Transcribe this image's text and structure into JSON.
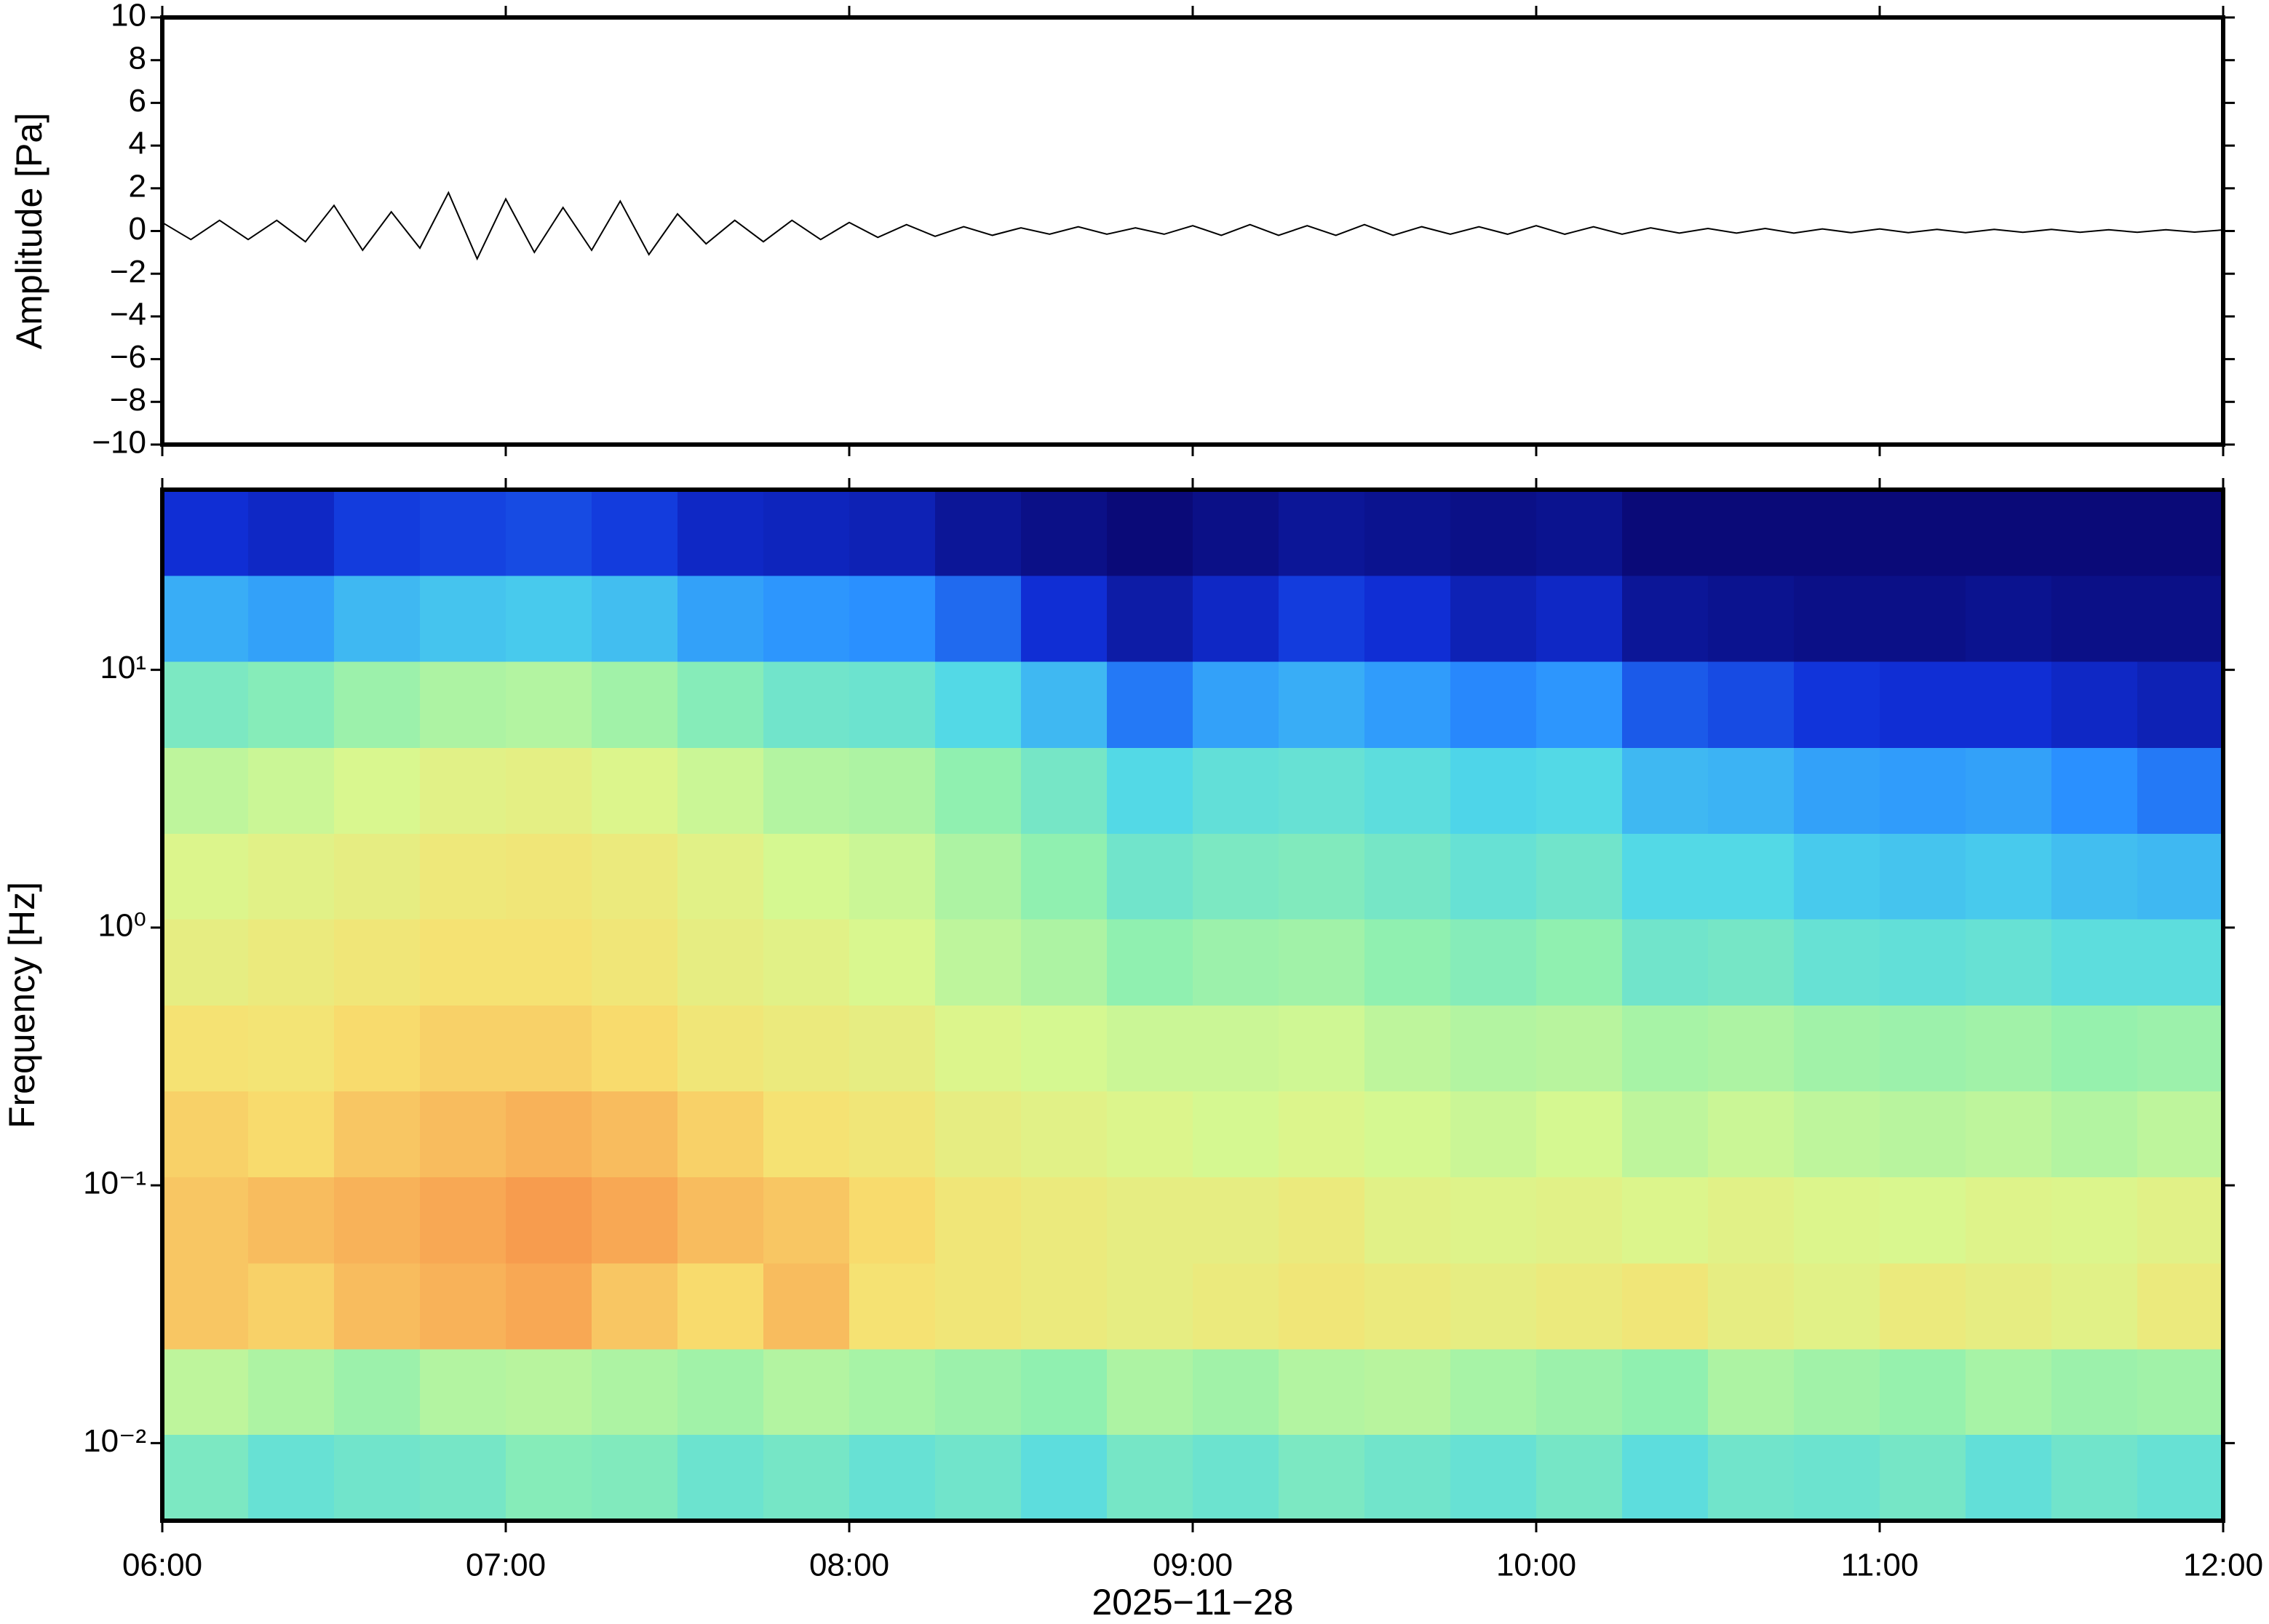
{
  "chart_data": [
    {
      "type": "line",
      "ylabel": "Amplitude [Pa]",
      "ylim": [
        -10,
        10
      ],
      "yticks": [
        {
          "value": -10,
          "label": "−10"
        },
        {
          "value": -8,
          "label": "−8"
        },
        {
          "value": -6,
          "label": "−6"
        },
        {
          "value": -4,
          "label": "−4"
        },
        {
          "value": -2,
          "label": "−2"
        },
        0,
        2,
        4,
        6,
        8,
        10
      ],
      "xlim": [
        "06:00",
        "12:00"
      ],
      "xticks": [
        "06:00",
        "07:00",
        "08:00",
        "09:00",
        "10:00",
        "11:00",
        "12:00"
      ],
      "show_xticklabels": false,
      "x": [
        "06:00",
        "06:05",
        "06:10",
        "06:15",
        "06:20",
        "06:25",
        "06:30",
        "06:35",
        "06:40",
        "06:45",
        "06:50",
        "06:55",
        "07:00",
        "07:05",
        "07:10",
        "07:15",
        "07:20",
        "07:25",
        "07:30",
        "07:35",
        "07:40",
        "07:45",
        "07:50",
        "07:55",
        "08:00",
        "08:05",
        "08:10",
        "08:15",
        "08:20",
        "08:25",
        "08:30",
        "08:35",
        "08:40",
        "08:45",
        "08:50",
        "08:55",
        "09:00",
        "09:05",
        "09:10",
        "09:15",
        "09:20",
        "09:25",
        "09:30",
        "09:35",
        "09:40",
        "09:45",
        "09:50",
        "09:55",
        "10:00",
        "10:05",
        "10:10",
        "10:15",
        "10:20",
        "10:25",
        "10:30",
        "10:35",
        "10:40",
        "10:45",
        "10:50",
        "10:55",
        "11:00",
        "11:05",
        "11:10",
        "11:15",
        "11:20",
        "11:25",
        "11:30",
        "11:35",
        "11:40",
        "11:45",
        "11:50",
        "11:55",
        "12:00"
      ],
      "series": [
        {
          "color": "#000000",
          "values": [
            0.4,
            -0.4,
            0.5,
            -0.4,
            0.5,
            -0.5,
            1.2,
            -0.9,
            0.9,
            -0.8,
            1.8,
            -1.3,
            1.5,
            -1.0,
            1.1,
            -0.9,
            1.4,
            -1.1,
            0.8,
            -0.6,
            0.5,
            -0.5,
            0.5,
            -0.4,
            0.4,
            -0.3,
            0.3,
            -0.25,
            0.2,
            -0.2,
            0.15,
            -0.15,
            0.2,
            -0.15,
            0.15,
            -0.15,
            0.25,
            -0.2,
            0.3,
            -0.2,
            0.25,
            -0.2,
            0.3,
            -0.2,
            0.2,
            -0.15,
            0.2,
            -0.15,
            0.25,
            -0.15,
            0.2,
            -0.15,
            0.15,
            -0.1,
            0.12,
            -0.1,
            0.12,
            -0.1,
            0.1,
            -0.08,
            0.1,
            -0.08,
            0.08,
            -0.08,
            0.08,
            -0.06,
            0.08,
            -0.06,
            0.06,
            -0.06,
            0.06,
            -0.05,
            0.05
          ]
        }
      ]
    },
    {
      "type": "heatmap",
      "ylabel": "Frequency [Hz]",
      "xlabel": "2025−11−28",
      "ylog": true,
      "ylim": [
        0.005,
        50
      ],
      "yticks": [
        {
          "value": 0.01,
          "label": "10⁻²"
        },
        {
          "value": 0.1,
          "label": "10⁻¹"
        },
        {
          "value": 1,
          "label": "10⁰"
        },
        {
          "value": 10,
          "label": "10¹"
        }
      ],
      "xlim": [
        "06:00",
        "12:00"
      ],
      "xticks": [
        "06:00",
        "07:00",
        "08:00",
        "09:00",
        "10:00",
        "11:00",
        "12:00"
      ],
      "show_xticklabels": true,
      "x_edges": [
        "06:00",
        "06:15",
        "06:30",
        "06:45",
        "07:00",
        "07:15",
        "07:30",
        "07:45",
        "08:00",
        "08:15",
        "08:30",
        "08:45",
        "09:00",
        "09:15",
        "09:30",
        "09:45",
        "10:00",
        "10:15",
        "10:30",
        "10:45",
        "11:00",
        "11:15",
        "11:30",
        "11:45",
        "12:00"
      ],
      "y_edges": [
        0.005,
        0.0108,
        0.0232,
        0.05,
        0.108,
        0.232,
        0.5,
        1.08,
        2.32,
        5,
        10.8,
        23.2,
        50
      ],
      "zlim": [
        0,
        1
      ],
      "colors": [
        "#0a0a78",
        "#1030d8",
        "#2a90ff",
        "#50d8e8",
        "#90f0b0",
        "#d8f890",
        "#f8e070",
        "#f8a050",
        "#e04828"
      ],
      "z": [
        [
          0.46,
          0.42,
          0.44,
          0.45,
          0.48,
          0.47,
          0.43,
          0.45,
          0.42,
          0.44,
          0.4,
          0.45,
          0.43,
          0.46,
          0.44,
          0.42,
          0.45,
          0.4,
          0.44,
          0.43,
          0.45,
          0.41,
          0.44,
          0.42
        ],
        [
          0.58,
          0.55,
          0.52,
          0.56,
          0.57,
          0.55,
          0.53,
          0.56,
          0.54,
          0.52,
          0.5,
          0.55,
          0.53,
          0.56,
          0.57,
          0.54,
          0.52,
          0.5,
          0.55,
          0.53,
          0.51,
          0.54,
          0.52,
          0.53
        ],
        [
          0.8,
          0.78,
          0.82,
          0.84,
          0.86,
          0.8,
          0.76,
          0.82,
          0.74,
          0.72,
          0.7,
          0.68,
          0.7,
          0.72,
          0.7,
          0.68,
          0.7,
          0.72,
          0.68,
          0.66,
          0.7,
          0.68,
          0.66,
          0.7
        ],
        [
          0.8,
          0.82,
          0.84,
          0.86,
          0.88,
          0.86,
          0.82,
          0.8,
          0.76,
          0.72,
          0.7,
          0.68,
          0.68,
          0.7,
          0.66,
          0.65,
          0.66,
          0.64,
          0.66,
          0.64,
          0.63,
          0.65,
          0.64,
          0.66
        ],
        [
          0.78,
          0.76,
          0.8,
          0.82,
          0.84,
          0.82,
          0.78,
          0.74,
          0.72,
          0.68,
          0.66,
          0.64,
          0.62,
          0.64,
          0.62,
          0.6,
          0.62,
          0.58,
          0.6,
          0.58,
          0.57,
          0.58,
          0.56,
          0.58
        ],
        [
          0.74,
          0.73,
          0.76,
          0.78,
          0.78,
          0.76,
          0.72,
          0.7,
          0.68,
          0.64,
          0.62,
          0.6,
          0.6,
          0.61,
          0.58,
          0.56,
          0.57,
          0.54,
          0.55,
          0.53,
          0.52,
          0.53,
          0.51,
          0.52
        ],
        [
          0.68,
          0.7,
          0.72,
          0.74,
          0.74,
          0.72,
          0.68,
          0.66,
          0.63,
          0.58,
          0.55,
          0.5,
          0.52,
          0.53,
          0.5,
          0.48,
          0.5,
          0.44,
          0.45,
          0.42,
          0.41,
          0.42,
          0.4,
          0.4
        ],
        [
          0.64,
          0.66,
          0.68,
          0.71,
          0.72,
          0.7,
          0.66,
          0.62,
          0.6,
          0.55,
          0.5,
          0.44,
          0.46,
          0.47,
          0.45,
          0.42,
          0.44,
          0.38,
          0.38,
          0.35,
          0.34,
          0.35,
          0.33,
          0.32
        ],
        [
          0.58,
          0.6,
          0.63,
          0.66,
          0.67,
          0.64,
          0.6,
          0.56,
          0.55,
          0.5,
          0.45,
          0.38,
          0.41,
          0.42,
          0.4,
          0.37,
          0.38,
          0.32,
          0.31,
          0.28,
          0.27,
          0.28,
          0.25,
          0.22
        ],
        [
          0.46,
          0.48,
          0.52,
          0.55,
          0.56,
          0.53,
          0.48,
          0.44,
          0.43,
          0.38,
          0.32,
          0.22,
          0.28,
          0.3,
          0.27,
          0.24,
          0.26,
          0.18,
          0.16,
          0.13,
          0.12,
          0.12,
          0.1,
          0.08
        ],
        [
          0.3,
          0.28,
          0.32,
          0.34,
          0.35,
          0.33,
          0.28,
          0.26,
          0.25,
          0.2,
          0.12,
          0.06,
          0.1,
          0.14,
          0.12,
          0.08,
          0.1,
          0.04,
          0.03,
          0.02,
          0.02,
          0.03,
          0.02,
          0.02
        ],
        [
          0.12,
          0.1,
          0.14,
          0.15,
          0.16,
          0.14,
          0.1,
          0.09,
          0.08,
          0.04,
          0.02,
          0.0,
          0.02,
          0.04,
          0.03,
          0.02,
          0.03,
          0.0,
          0.0,
          0.0,
          0.0,
          0.0,
          0.0,
          0.0
        ]
      ]
    }
  ]
}
